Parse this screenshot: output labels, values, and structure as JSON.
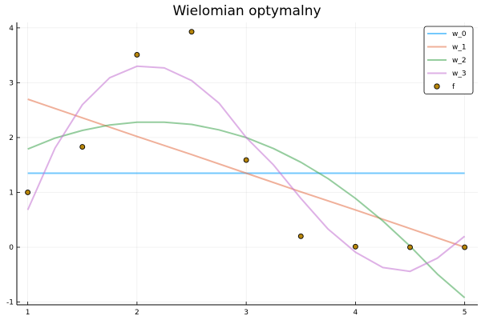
{
  "chart_data": {
    "type": "line",
    "title": "Wielomian optymalny",
    "xlabel": "",
    "ylabel": "",
    "xlim": [
      0.9,
      5.12
    ],
    "ylim": [
      -1.05,
      4.1
    ],
    "x_ticks": [
      1,
      2,
      3,
      4,
      5
    ],
    "x_tick_labels": [
      "1",
      "2",
      "3",
      "4",
      "5"
    ],
    "y_ticks": [
      -1,
      0,
      1,
      2,
      3,
      4
    ],
    "y_tick_labels": [
      "-1",
      "0",
      "1",
      "2",
      "3",
      "4"
    ],
    "grid": true,
    "legend_position": "top-right",
    "series": [
      {
        "name": "w_0",
        "kind": "line",
        "color": "#009AFA",
        "x": [
          1.0,
          1.5,
          2.0,
          2.5,
          3.0,
          3.5,
          4.0,
          4.5,
          5.0
        ],
        "y": [
          1.35,
          1.35,
          1.35,
          1.35,
          1.35,
          1.35,
          1.35,
          1.35,
          1.35
        ]
      },
      {
        "name": "w_1",
        "kind": "line",
        "color": "#E36F47",
        "x": [
          1.0,
          1.5,
          2.0,
          2.5,
          3.0,
          3.5,
          4.0,
          4.5,
          5.0
        ],
        "y": [
          2.7,
          2.36,
          2.02,
          1.69,
          1.35,
          1.01,
          0.68,
          0.34,
          0.0
        ]
      },
      {
        "name": "w_2",
        "kind": "line",
        "color": "#3EA44E",
        "x": [
          1.0,
          1.25,
          1.5,
          1.75,
          2.0,
          2.25,
          2.5,
          2.75,
          3.0,
          3.25,
          3.5,
          3.75,
          4.0,
          4.25,
          4.5,
          4.75,
          5.0
        ],
        "y": [
          1.79,
          1.99,
          2.13,
          2.23,
          2.28,
          2.28,
          2.24,
          2.14,
          2.0,
          1.8,
          1.55,
          1.25,
          0.89,
          0.48,
          0.02,
          -0.49,
          -0.92
        ]
      },
      {
        "name": "w_3",
        "kind": "line",
        "color": "#C271D2",
        "x": [
          1.0,
          1.25,
          1.5,
          1.75,
          2.0,
          2.25,
          2.5,
          2.75,
          3.0,
          3.25,
          3.5,
          3.75,
          4.0,
          4.25,
          4.5,
          4.75,
          5.0
        ],
        "y": [
          0.68,
          1.81,
          2.6,
          3.09,
          3.3,
          3.27,
          3.04,
          2.63,
          2.0,
          1.5,
          0.89,
          0.33,
          -0.09,
          -0.37,
          -0.44,
          -0.2,
          0.2
        ]
      },
      {
        "name": "f",
        "kind": "scatter",
        "color": "#B8860B",
        "x": [
          1.0,
          1.5,
          2.0,
          2.5,
          3.0,
          3.5,
          4.0,
          4.5,
          5.0
        ],
        "y": [
          1.0,
          1.83,
          3.51,
          3.93,
          1.59,
          0.2,
          0.01,
          0.0,
          0.0
        ]
      }
    ]
  }
}
